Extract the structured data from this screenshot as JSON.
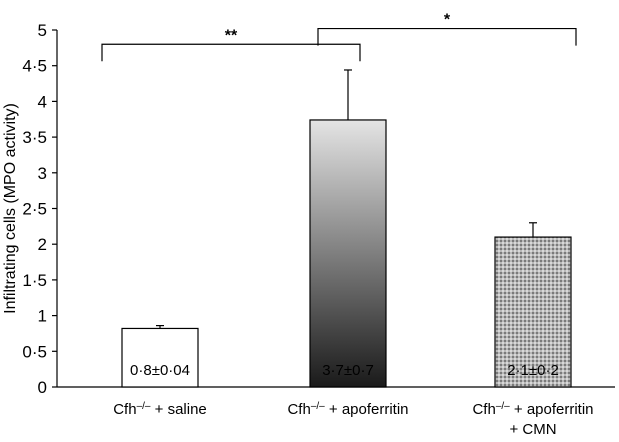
{
  "chart_data": {
    "type": "bar",
    "ylabel": "Infiltrating cells (MPO activity)",
    "ylim": [
      0,
      5
    ],
    "y_ticks": [
      "0",
      "0·5",
      "1",
      "1·5",
      "2",
      "2·5",
      "3",
      "3·5",
      "4",
      "4·5",
      "5"
    ],
    "grid": false,
    "categories": [
      {
        "line1_prefix": "Cfh",
        "line1_sup": "–/–",
        "line1_suffix": " + saline",
        "line2": ""
      },
      {
        "line1_prefix": "Cfh",
        "line1_sup": "–/–",
        "line1_suffix": " + apoferritin",
        "line2": ""
      },
      {
        "line1_prefix": "Cfh",
        "line1_sup": "–/–",
        "line1_suffix": " + apoferritin",
        "line2": "+ CMN"
      }
    ],
    "values": [
      0.82,
      3.74,
      2.1
    ],
    "errors": [
      0.04,
      0.7,
      0.2
    ],
    "bar_labels": [
      "0·8±0·04",
      "3·7±0·7",
      "2·1±0·2"
    ],
    "bar_styles": [
      "white",
      "gradient",
      "hatched"
    ],
    "significance": [
      {
        "from": 0,
        "to": 1,
        "label": "**",
        "level": 4.8
      },
      {
        "from": 1,
        "to": 2,
        "label": "*",
        "level": 5.02
      }
    ]
  }
}
